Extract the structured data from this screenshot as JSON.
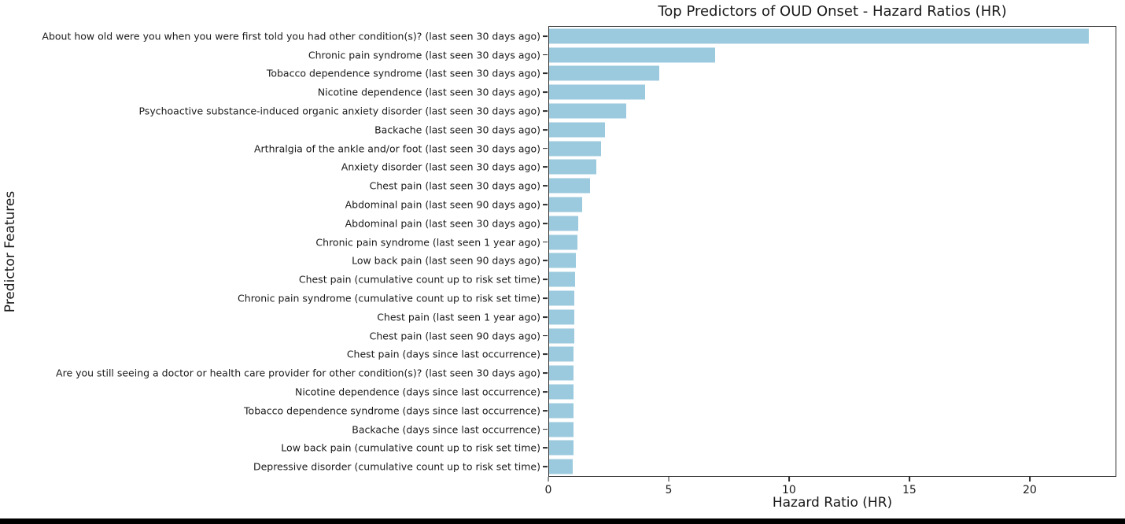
{
  "page": {
    "background_color": "#ffffff",
    "bottom_bar_color": "#000000"
  },
  "chart_data": {
    "type": "bar",
    "orientation": "horizontal",
    "title": "Top Predictors of OUD Onset - Hazard Ratios (HR)",
    "xlabel": "Hazard Ratio (HR)",
    "ylabel": "Predictor Features",
    "bar_color": "#9bcade",
    "grid": false,
    "legend": null,
    "xlim": [
      0,
      23.6
    ],
    "x_ticks": [
      0,
      5,
      10,
      15,
      20
    ],
    "categories": [
      "About how old were you when you were first told you had other condition(s)? (last seen 30 days ago)",
      "Chronic pain syndrome (last seen 30 days ago)",
      "Tobacco dependence syndrome (last seen 30 days ago)",
      "Nicotine dependence (last seen 30 days ago)",
      "Psychoactive substance-induced organic anxiety disorder (last seen 30 days ago)",
      "Backache (last seen 30 days ago)",
      "Arthralgia of the ankle and/or foot (last seen 30 days ago)",
      "Anxiety disorder (last seen 30 days ago)",
      "Chest pain (last seen 30 days ago)",
      "Abdominal pain (last seen 90 days ago)",
      "Abdominal pain (last seen 30 days ago)",
      "Chronic pain syndrome (last seen 1 year ago)",
      "Low back pain (last seen 90 days ago)",
      "Chest pain (cumulative count up to risk set time)",
      "Chronic pain syndrome (cumulative count up to risk set time)",
      "Chest pain (last seen 1 year ago)",
      "Chest pain (last seen 90 days ago)",
      "Chest pain (days since last occurrence)",
      "Are you still seeing a doctor or health care provider for other condition(s)? (last seen 30 days ago)",
      "Nicotine dependence (days since last occurrence)",
      "Tobacco dependence syndrome (days since last occurrence)",
      "Backache (days since last occurrence)",
      "Low back pain (cumulative count up to risk set time)",
      "Depressive disorder (cumulative count up to risk set time)"
    ],
    "values": [
      22.5,
      6.9,
      4.6,
      4.0,
      3.2,
      2.33,
      2.15,
      1.97,
      1.69,
      1.37,
      1.22,
      1.17,
      1.11,
      1.08,
      1.06,
      1.05,
      1.04,
      1.03,
      1.02,
      1.02,
      1.01,
      1.01,
      1.0,
      0.98
    ]
  }
}
